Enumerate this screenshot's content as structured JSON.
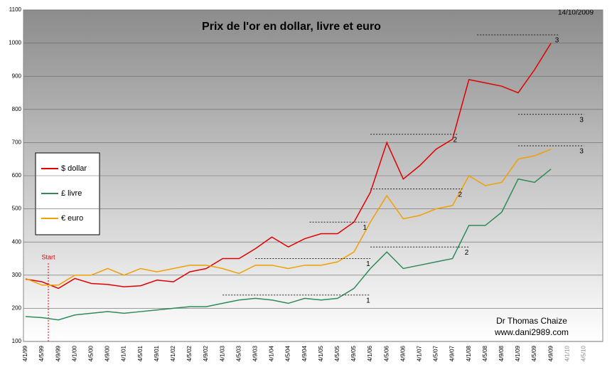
{
  "chart_data": {
    "type": "line",
    "title": "Prix de l'or en dollar, livre et euro",
    "date_note": "14/10/2009",
    "start_label": "Start",
    "credit": "Dr Thomas Chaize",
    "website": "www.dani2989.com",
    "categories": [
      "4/1/99",
      "4/5/99",
      "4/9/99",
      "4/1/00",
      "4/5/00",
      "4/9/00",
      "4/1/01",
      "4/5/01",
      "4/9/01",
      "4/1/02",
      "4/5/02",
      "4/9/02",
      "4/1/03",
      "4/5/03",
      "4/9/03",
      "4/1/04",
      "4/5/04",
      "4/9/04",
      "4/1/05",
      "4/5/05",
      "4/9/05",
      "4/1/06",
      "4/5/06",
      "4/9/06",
      "4/1/07",
      "4/5/07",
      "4/9/07",
      "4/1/08",
      "4/5/08",
      "4/9/08",
      "4/1/09",
      "4/5/09",
      "4/9/09",
      "4/1/10",
      "4/5/10"
    ],
    "series": [
      {
        "name": "$ dollar",
        "color": "#e00000",
        "values": [
          288,
          280,
          260,
          290,
          275,
          272,
          265,
          268,
          285,
          280,
          310,
          320,
          350,
          350,
          380,
          415,
          385,
          410,
          425,
          425,
          460,
          550,
          700,
          590,
          630,
          680,
          710,
          890,
          880,
          870,
          850,
          920,
          1000,
          null,
          null
        ]
      },
      {
        "name": "£ livre",
        "color": "#2e8b57",
        "values": [
          175,
          172,
          165,
          180,
          185,
          190,
          185,
          190,
          195,
          200,
          205,
          205,
          215,
          225,
          230,
          225,
          215,
          230,
          225,
          230,
          260,
          320,
          370,
          320,
          330,
          340,
          350,
          450,
          450,
          490,
          590,
          580,
          620,
          null,
          null
        ]
      },
      {
        "name": "€ euro",
        "color": "#f0a000",
        "values": [
          290,
          270,
          270,
          300,
          300,
          320,
          300,
          320,
          310,
          320,
          330,
          330,
          320,
          305,
          330,
          330,
          320,
          330,
          330,
          340,
          370,
          460,
          540,
          470,
          480,
          500,
          510,
          600,
          570,
          580,
          650,
          660,
          680,
          null,
          null
        ]
      }
    ],
    "reference_lines": [
      {
        "label": "1",
        "value": 460
      },
      {
        "label": "2",
        "value": 725
      },
      {
        "label": "3",
        "value": 1025
      },
      {
        "label": "1",
        "value": 350
      },
      {
        "label": "2",
        "value": 560
      },
      {
        "label": "3",
        "value": 785
      },
      {
        "label": "1",
        "value": 240
      },
      {
        "label": "2",
        "value": 385
      },
      {
        "label": "3",
        "value": 690
      }
    ],
    "ylim": [
      100,
      1100
    ],
    "yticks": [
      100,
      200,
      300,
      400,
      500,
      600,
      700,
      800,
      900,
      1000,
      1100
    ],
    "grid": true
  }
}
